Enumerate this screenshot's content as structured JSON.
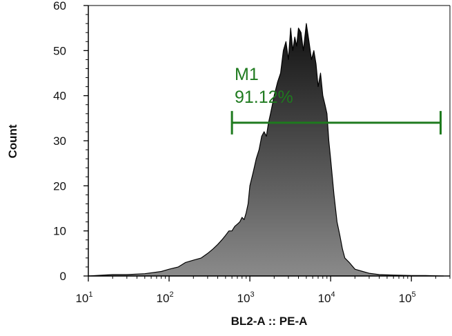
{
  "chart_data": {
    "type": "area",
    "xlabel": "BL2-A :: PE-A",
    "ylabel": "Count",
    "x_scale": "log",
    "xlim": [
      10,
      300000
    ],
    "ylim": [
      0,
      60
    ],
    "x_ticks": [
      {
        "value": 10,
        "base": "10",
        "exp": "1"
      },
      {
        "value": 100,
        "base": "10",
        "exp": "2"
      },
      {
        "value": 1000,
        "base": "10",
        "exp": "3"
      },
      {
        "value": 10000,
        "base": "10",
        "exp": "4"
      },
      {
        "value": 100000,
        "base": "10",
        "exp": "5"
      }
    ],
    "y_ticks": [
      "0",
      "10",
      "20",
      "30",
      "40",
      "50",
      "60"
    ],
    "series": [
      {
        "x": [
          10,
          20,
          30,
          50,
          80,
          100,
          130,
          160,
          200,
          250,
          300,
          350,
          400,
          450,
          500,
          550,
          600,
          650,
          700,
          750,
          800,
          850,
          900,
          950,
          1000,
          1100,
          1200,
          1300,
          1400,
          1500,
          1600,
          1700,
          1800,
          1900,
          2000,
          2200,
          2400,
          2600,
          2800,
          3000,
          3200,
          3400,
          3600,
          3800,
          4000,
          4300,
          4600,
          5000,
          5400,
          5800,
          6200,
          6600,
          7000,
          7500,
          8000,
          8500,
          9000,
          9500,
          10000,
          11000,
          12000,
          13000,
          14000,
          15000,
          17000,
          20000,
          25000,
          30000,
          40000,
          60000,
          100000,
          150000,
          250000
        ],
        "values": [
          0,
          0.3,
          0.3,
          0.5,
          1,
          1.5,
          2,
          3,
          3.5,
          4,
          5,
          6,
          7,
          8,
          9,
          10,
          10,
          11,
          11.5,
          12,
          13,
          12.5,
          14,
          16,
          20,
          23,
          26,
          28,
          31,
          32,
          31,
          34,
          36,
          38,
          40,
          43,
          45,
          50,
          52,
          48,
          55,
          50,
          53,
          51,
          55,
          54,
          50,
          56,
          52,
          48,
          50,
          47,
          42,
          45,
          40,
          38,
          36,
          30,
          26,
          18,
          12,
          9,
          6,
          4,
          3,
          1.5,
          1,
          0.6,
          0.3,
          0.2,
          0.1,
          0.1,
          0
        ],
        "color": "#555555"
      }
    ],
    "gate": {
      "name": "M1",
      "percent": "91.12%",
      "x_start": 600,
      "x_end": 230000,
      "y": 34,
      "color": "#1e7a1e"
    }
  }
}
